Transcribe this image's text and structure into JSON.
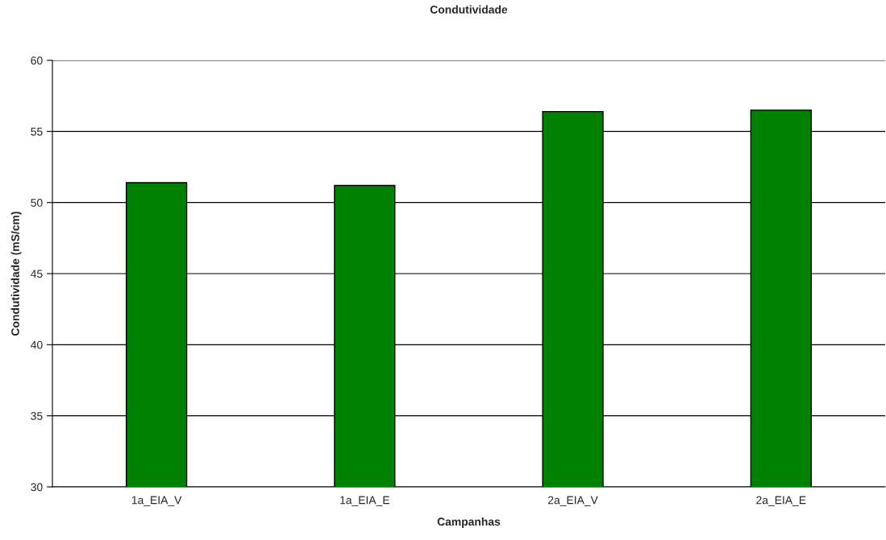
{
  "chart_data": {
    "type": "bar",
    "title": "Condutividade",
    "xlabel": "Campanhas",
    "ylabel": "Condutividade (mS/cm)",
    "categories": [
      "1a_EIA_V",
      "1a_EIA_E",
      "2a_EIA_V",
      "2a_EIA_E"
    ],
    "values": [
      51.4,
      51.2,
      56.4,
      56.5
    ],
    "color": "#008000",
    "ylim": [
      30,
      60
    ],
    "yticks": [
      30,
      35,
      40,
      45,
      50,
      55,
      60
    ],
    "grid": "y"
  }
}
